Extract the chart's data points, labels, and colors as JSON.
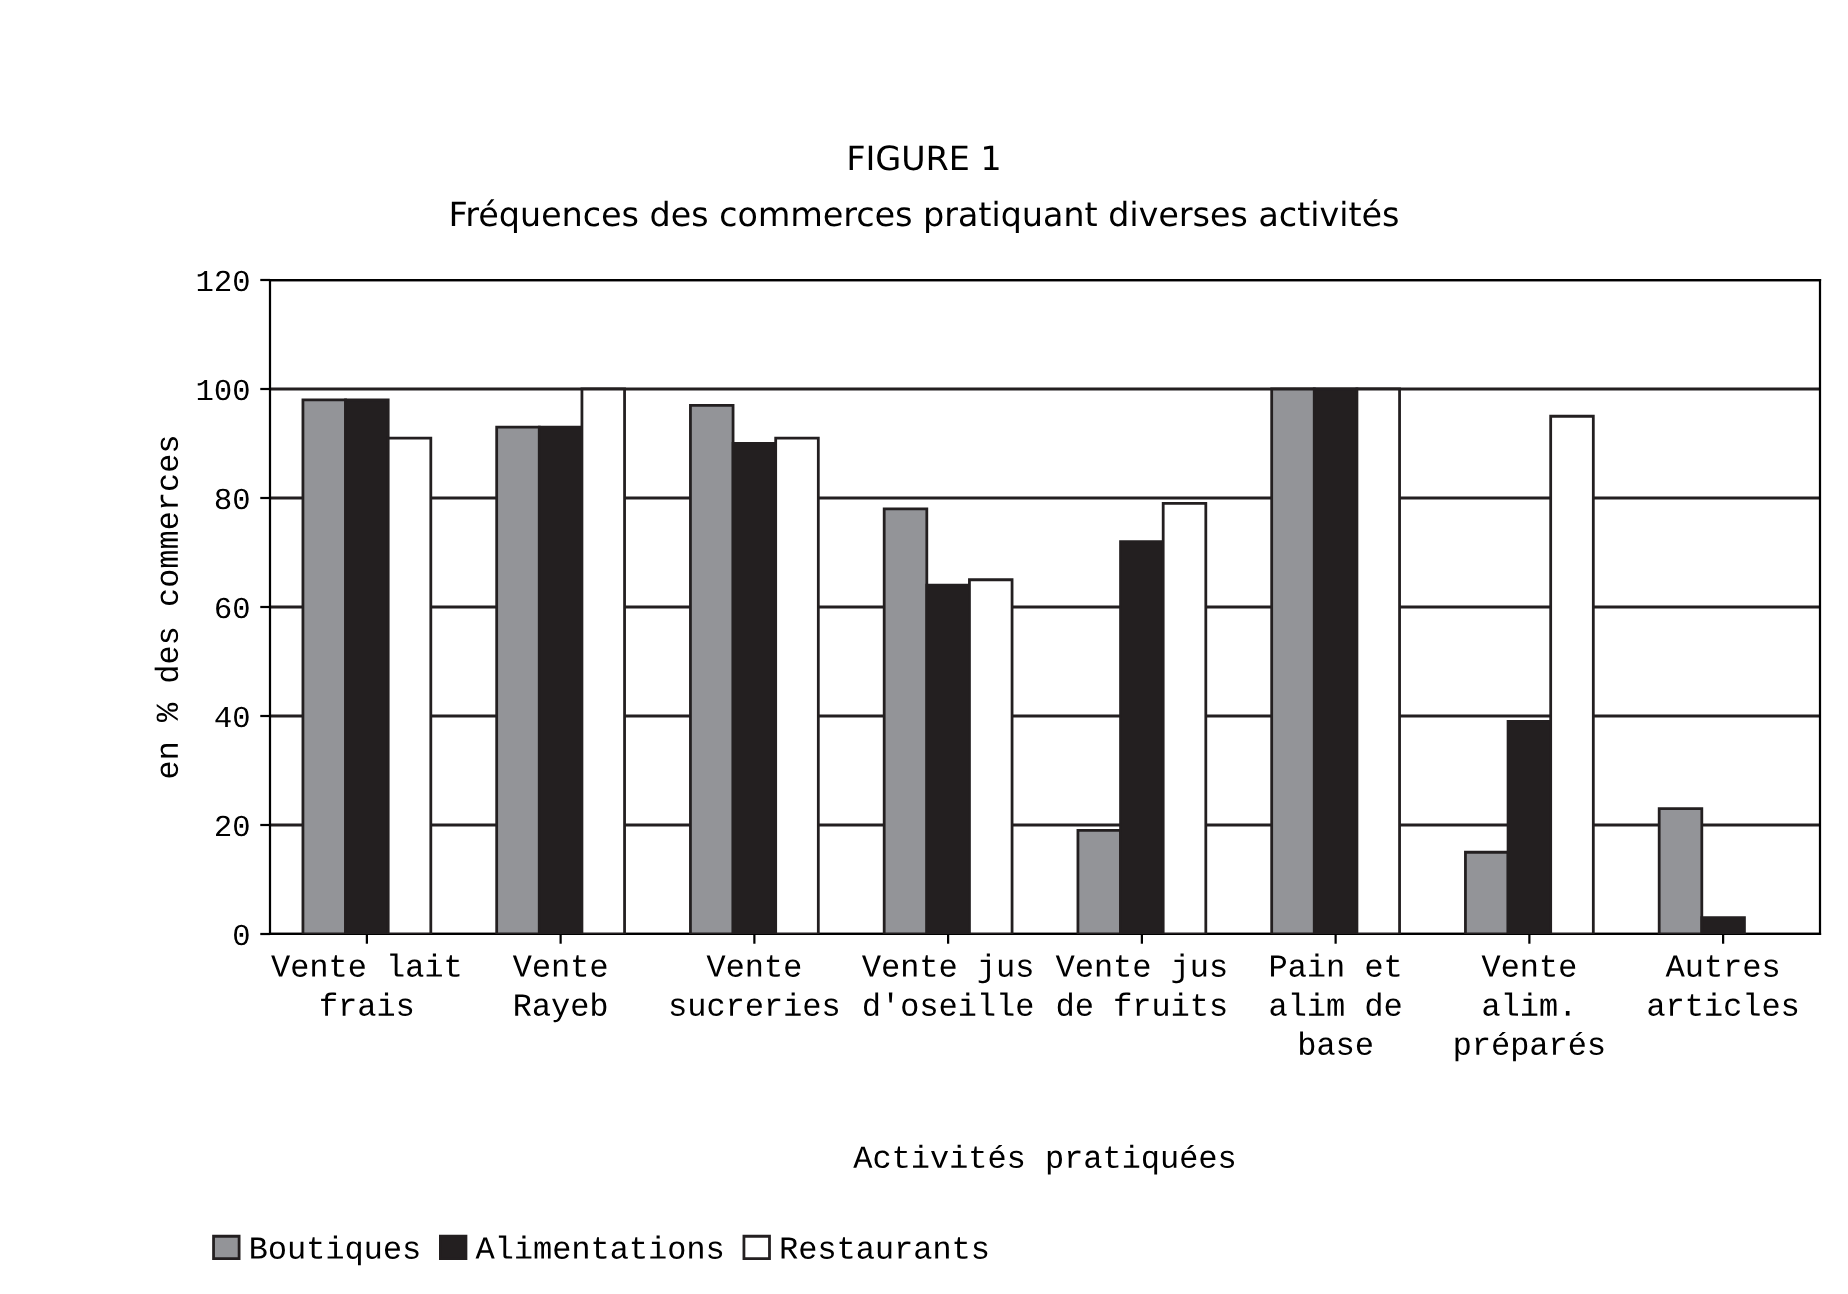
{
  "chart_data": {
    "type": "bar",
    "title": "FIGURE 1",
    "subtitle": "Fréquences des commerces pratiquant diverses activités",
    "xlabel": "Activités pratiquées",
    "ylabel": "en % des commerces",
    "categories": [
      "Vente lait\nfrais",
      "Vente\nRayeb",
      "Vente\nsucreries",
      "Vente jus\nd'oseille",
      "Vente jus\nde fruits",
      "Pain et\nalim de\nbase",
      "Vente\nalim.\npréparés",
      "Autres\narticles"
    ],
    "series": [
      {
        "name": "Boutiques",
        "color": "#939498",
        "values": [
          98,
          93,
          97,
          78,
          19,
          100,
          15,
          23
        ]
      },
      {
        "name": "Alimentations",
        "color": "#231f20",
        "values": [
          98,
          93,
          90,
          64,
          72,
          100,
          39,
          3
        ]
      },
      {
        "name": "Restaurants",
        "color": "#ffffff",
        "values": [
          91,
          100,
          91,
          65,
          79,
          100,
          95,
          0
        ]
      }
    ],
    "ylim": [
      0,
      120
    ],
    "yticks": [
      0,
      20,
      40,
      60,
      80,
      100,
      120
    ],
    "grid": "y",
    "legend": "bottom left"
  }
}
